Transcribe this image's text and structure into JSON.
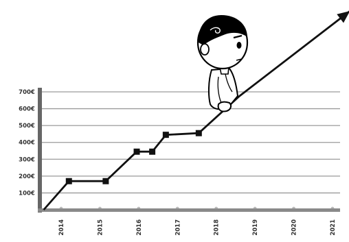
{
  "chart_data": {
    "type": "line",
    "title": "",
    "xlabel": "",
    "ylabel": "",
    "y_ticks": [
      "100€",
      "200€",
      "300€",
      "400€",
      "500€",
      "600€",
      "700€"
    ],
    "y_tick_values": [
      100,
      200,
      300,
      400,
      500,
      600,
      700
    ],
    "x_ticks": [
      "2014",
      "2015",
      "2016",
      "2017",
      "2018",
      "2019",
      "2020",
      "2021"
    ],
    "x_tick_values": [
      2014,
      2015,
      2016,
      2017,
      2018,
      2019,
      2020,
      2021
    ],
    "xlim": [
      2013.55,
      2021.35
    ],
    "ylim": [
      0,
      700
    ],
    "grid": true,
    "series": [
      {
        "x": [
          2013.55,
          2014.2,
          2015.15,
          2015.95,
          2016.35,
          2016.7,
          2017.55,
          2018.6,
          2021.45
        ],
        "y": [
          0,
          170,
          170,
          345,
          345,
          445,
          455,
          675,
          1180
        ],
        "markers": [
          2014.2,
          2015.15,
          2015.95,
          2016.35,
          2016.7,
          2017.55
        ],
        "ends_with_arrow": true
      }
    ],
    "illustration": "cartoon-boy-climbing-arrow"
  }
}
